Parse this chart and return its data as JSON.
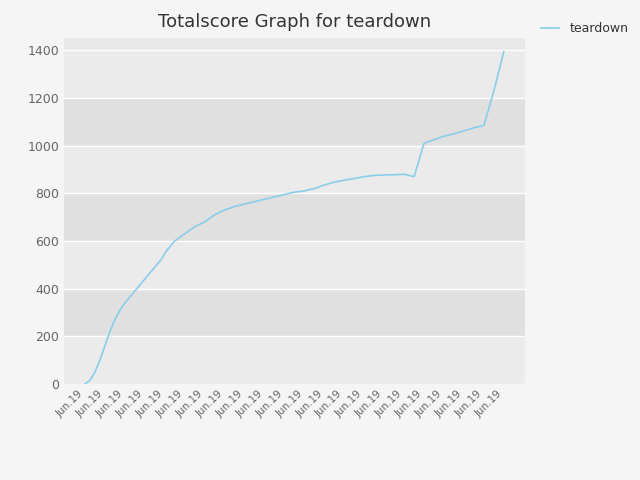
{
  "title": "Totalscore Graph for teardown",
  "legend_label": "teardown",
  "line_color": "#87CEEB",
  "fig_bg_color": "#f5f5f5",
  "plot_bg_color": "#e8e8e8",
  "band_color_light": "#ebebeb",
  "band_color_dark": "#e0e0e0",
  "title_fontsize": 13,
  "ylim": [
    0,
    1450
  ],
  "yticks": [
    0,
    200,
    400,
    600,
    800,
    1000,
    1200,
    1400
  ],
  "num_xticks": 22,
  "xtick_label": "Jun.19",
  "x_data": [
    0,
    0.25,
    0.5,
    0.75,
    1.0,
    1.25,
    1.5,
    1.75,
    2.0,
    2.3,
    2.6,
    2.9,
    3.2,
    3.5,
    3.8,
    4.1,
    4.5,
    5.0,
    5.5,
    6.0,
    6.5,
    7.0,
    7.5,
    8.0,
    8.5,
    9.0,
    9.5,
    10.0,
    10.5,
    11.0,
    11.5,
    12.0,
    12.5,
    13.0,
    13.5,
    14.0,
    14.5,
    15.0,
    15.5,
    16.0,
    16.5,
    17.0,
    17.5,
    18.0,
    18.5,
    19.0,
    19.5,
    20.0,
    20.5,
    21.0
  ],
  "y_data": [
    0,
    15,
    50,
    100,
    160,
    220,
    270,
    310,
    340,
    370,
    400,
    430,
    460,
    490,
    520,
    560,
    600,
    630,
    660,
    680,
    710,
    730,
    745,
    755,
    765,
    775,
    785,
    795,
    805,
    810,
    820,
    835,
    847,
    855,
    862,
    870,
    875,
    877,
    878,
    880,
    870,
    1010,
    1025,
    1040,
    1050,
    1062,
    1075,
    1085,
    1230,
    1395
  ]
}
